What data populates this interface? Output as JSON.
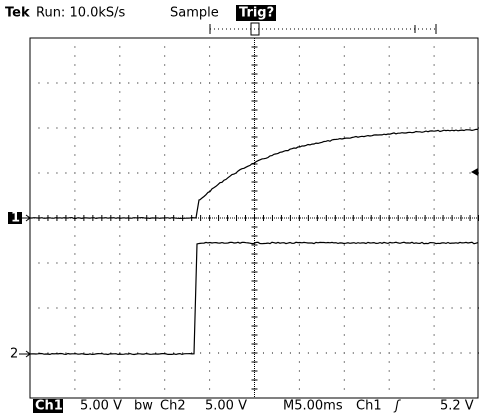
{
  "header": {
    "brand": "Tek",
    "run": "Run: 10.0kS/s",
    "mode": "Sample",
    "trigger_state": "Trig?"
  },
  "markers": {
    "ch1": "1",
    "ch2": "2"
  },
  "status": {
    "ch1_label": "Ch1",
    "ch1_scale": "5.00 V",
    "bw": "bw",
    "ch2_label": "Ch2",
    "ch2_scale": "5.00 V",
    "timebase": "M5.00ms",
    "trig_source": "Ch1",
    "trig_slope": "ʃ",
    "trig_level": "5.2 V"
  }
}
